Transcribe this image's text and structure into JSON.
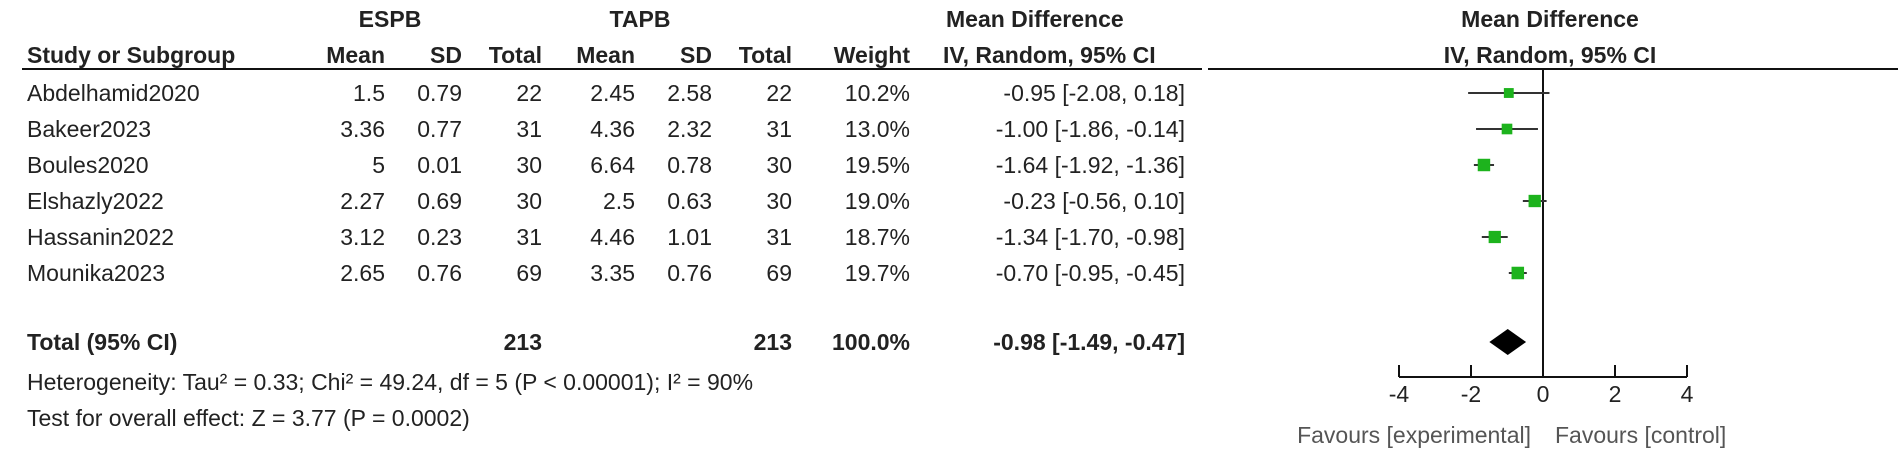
{
  "header": {
    "group1": "ESPB",
    "group2": "TAPB",
    "effect_col_title": "Mean Difference",
    "effect_col_method": "IV, Random, 95% CI",
    "plot_title": "Mean Difference",
    "plot_method": "IV, Random, 95% CI",
    "study_col": "Study or Subgroup",
    "mean": "Mean",
    "sd": "SD",
    "total": "Total",
    "weight": "Weight"
  },
  "studies": [
    {
      "name": "Abdelhamid2020",
      "m1": "1.5",
      "sd1": "0.79",
      "n1": "22",
      "m2": "2.45",
      "sd2": "2.58",
      "n2": "22",
      "weight": "10.2%",
      "ci_text": "-0.95 [-2.08, 0.18]"
    },
    {
      "name": "Bakeer2023",
      "m1": "3.36",
      "sd1": "0.77",
      "n1": "31",
      "m2": "4.36",
      "sd2": "2.32",
      "n2": "31",
      "weight": "13.0%",
      "ci_text": "-1.00 [-1.86, -0.14]"
    },
    {
      "name": "Boules2020",
      "m1": "5",
      "sd1": "0.01",
      "n1": "30",
      "m2": "6.64",
      "sd2": "0.78",
      "n2": "30",
      "weight": "19.5%",
      "ci_text": "-1.64 [-1.92, -1.36]"
    },
    {
      "name": "Elshazly2022",
      "m1": "2.27",
      "sd1": "0.69",
      "n1": "30",
      "m2": "2.5",
      "sd2": "0.63",
      "n2": "30",
      "weight": "19.0%",
      "ci_text": "-0.23 [-0.56, 0.10]"
    },
    {
      "name": "Hassanin2022",
      "m1": "3.12",
      "sd1": "0.23",
      "n1": "31",
      "m2": "4.46",
      "sd2": "1.01",
      "n2": "31",
      "weight": "18.7%",
      "ci_text": "-1.34 [-1.70, -0.98]"
    },
    {
      "name": "Mounika2023",
      "m1": "2.65",
      "sd1": "0.76",
      "n1": "69",
      "m2": "3.35",
      "sd2": "0.76",
      "n2": "69",
      "weight": "19.7%",
      "ci_text": "-0.70 [-0.95, -0.45]"
    }
  ],
  "total": {
    "label": "Total (95% CI)",
    "n1": "213",
    "n2": "213",
    "weight": "100.0%",
    "ci_text": "-0.98 [-1.49, -0.47]"
  },
  "footnotes": {
    "heterogeneity": "Heterogeneity: Tau² = 0.33; Chi² = 49.24, df = 5 (P < 0.00001); I² = 90%",
    "overall": "Test for overall effect: Z = 3.77 (P = 0.0002)"
  },
  "axis": {
    "favours_left": "Favours [experimental]",
    "favours_right": "Favours [control]"
  },
  "chart_data": {
    "type": "forest",
    "xlim": [
      -4,
      4
    ],
    "ticks": [
      -4,
      -2,
      0,
      2,
      4
    ],
    "tick_labels": [
      "-4",
      "-2",
      "0",
      "2",
      "4"
    ],
    "reference_line": 0,
    "series": [
      {
        "label": "Abdelhamid2020",
        "estimate": -0.95,
        "lower": -2.08,
        "upper": 0.18,
        "weight": 10.2
      },
      {
        "label": "Bakeer2023",
        "estimate": -1.0,
        "lower": -1.86,
        "upper": -0.14,
        "weight": 13.0
      },
      {
        "label": "Boules2020",
        "estimate": -1.64,
        "lower": -1.92,
        "upper": -1.36,
        "weight": 19.5
      },
      {
        "label": "Elshazly2022",
        "estimate": -0.23,
        "lower": -0.56,
        "upper": 0.1,
        "weight": 19.0
      },
      {
        "label": "Hassanin2022",
        "estimate": -1.34,
        "lower": -1.7,
        "upper": -0.98,
        "weight": 18.7
      },
      {
        "label": "Mounika2023",
        "estimate": -0.7,
        "lower": -0.95,
        "upper": -0.45,
        "weight": 19.7
      }
    ],
    "pooled": {
      "estimate": -0.98,
      "lower": -1.49,
      "upper": -0.47
    },
    "colors": {
      "square": "#1db31d",
      "diamond": "#000000",
      "line": "#333333"
    }
  }
}
